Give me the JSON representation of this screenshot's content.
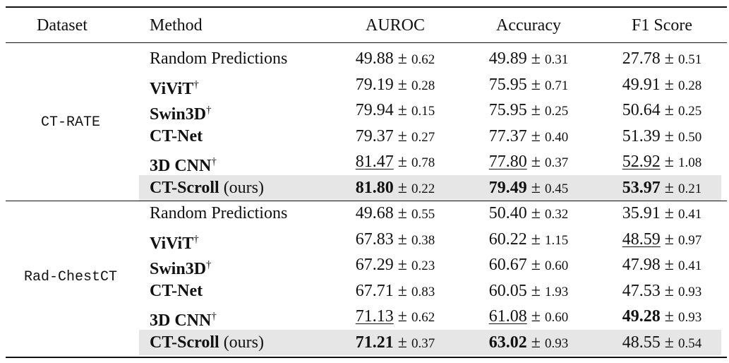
{
  "header": {
    "dataset": "Dataset",
    "method": "Method",
    "metrics": [
      "AUROC",
      "Accuracy",
      "F1 Score"
    ]
  },
  "groups": [
    {
      "dataset": "CT-RATE",
      "rows": [
        {
          "method": {
            "name": "Random Predictions"
          },
          "cells": [
            {
              "mean": "49.88",
              "sign": "±",
              "std": "0.62"
            },
            {
              "mean": "49.89",
              "sign": "±",
              "std": "0.31"
            },
            {
              "mean": "27.78",
              "sign": "±",
              "std": "0.51"
            }
          ]
        },
        {
          "method": {
            "name": "ViViT",
            "mark": "†",
            "bold": true
          },
          "cells": [
            {
              "mean": "79.19",
              "sign": "±",
              "std": "0.28"
            },
            {
              "mean": "75.95",
              "sign": "±",
              "std": "0.71"
            },
            {
              "mean": "49.91",
              "sign": "±",
              "std": "0.28"
            }
          ]
        },
        {
          "method": {
            "name": "Swin3D",
            "mark": "†",
            "bold": true
          },
          "cells": [
            {
              "mean": "79.94",
              "sign": "±",
              "std": "0.15"
            },
            {
              "mean": "75.95",
              "sign": "±",
              "std": "0.25"
            },
            {
              "mean": "50.64",
              "sign": "±",
              "std": "0.25"
            }
          ]
        },
        {
          "method": {
            "name": "CT-Net",
            "bold": true
          },
          "cells": [
            {
              "mean": "79.37",
              "sign": "±",
              "std": "0.27"
            },
            {
              "mean": "77.37",
              "sign": "±",
              "std": "0.40"
            },
            {
              "mean": "51.39",
              "sign": "±",
              "std": "0.50"
            }
          ]
        },
        {
          "method": {
            "name": "3D CNN",
            "mark": "†",
            "bold": true
          },
          "cells": [
            {
              "mean": "81.47",
              "sign": "±",
              "std": "0.78",
              "style": "underline"
            },
            {
              "mean": "77.80",
              "sign": "±",
              "std": "0.37",
              "style": "underline"
            },
            {
              "mean": "52.92",
              "sign": "±",
              "std": "1.08",
              "style": "underline"
            }
          ]
        },
        {
          "method": {
            "name": "CT-Scroll",
            "note": "(ours)",
            "bold": true
          },
          "highlight": true,
          "cells": [
            {
              "mean": "81.80",
              "sign": "±",
              "std": "0.22",
              "style": "bold"
            },
            {
              "mean": "79.49",
              "sign": "±",
              "std": "0.45",
              "style": "bold"
            },
            {
              "mean": "53.97",
              "sign": "±",
              "std": "0.21",
              "style": "bold"
            }
          ]
        }
      ]
    },
    {
      "dataset": "Rad-ChestCT",
      "rows": [
        {
          "method": {
            "name": "Random Predictions"
          },
          "cells": [
            {
              "mean": "49.68",
              "sign": "±",
              "std": "0.55"
            },
            {
              "mean": "50.40",
              "sign": "±",
              "std": "0.32"
            },
            {
              "mean": "35.91",
              "sign": "±",
              "std": "0.41"
            }
          ]
        },
        {
          "method": {
            "name": "ViViT",
            "mark": "†",
            "bold": true
          },
          "cells": [
            {
              "mean": "67.83",
              "sign": "±",
              "std": "0.38"
            },
            {
              "mean": "60.22",
              "sign": "±",
              "std": "1.15"
            },
            {
              "mean": "48.59",
              "sign": "±",
              "std": "0.97",
              "style": "underline"
            }
          ]
        },
        {
          "method": {
            "name": "Swin3D",
            "mark": "†",
            "bold": true
          },
          "cells": [
            {
              "mean": "67.29",
              "sign": "±",
              "std": "0.23"
            },
            {
              "mean": "60.67",
              "sign": "±",
              "std": "0.60"
            },
            {
              "mean": "47.98",
              "sign": "±",
              "std": "0.41"
            }
          ]
        },
        {
          "method": {
            "name": "CT-Net",
            "bold": true
          },
          "cells": [
            {
              "mean": "67.71",
              "sign": "±",
              "std": "0.83"
            },
            {
              "mean": "60.05",
              "sign": "±",
              "std": "1.93"
            },
            {
              "mean": "47.53",
              "sign": "±",
              "std": "0.93"
            }
          ]
        },
        {
          "method": {
            "name": "3D CNN",
            "mark": "†",
            "bold": true
          },
          "cells": [
            {
              "mean": "71.13",
              "sign": "±",
              "std": "0.62",
              "style": "underline"
            },
            {
              "mean": "61.08",
              "sign": "±",
              "std": "0.60",
              "style": "underline"
            },
            {
              "mean": "49.28",
              "sign": "±",
              "std": "0.93",
              "style": "bold"
            }
          ]
        },
        {
          "method": {
            "name": "CT-Scroll",
            "note": "(ours)",
            "bold": true
          },
          "highlight": true,
          "cells": [
            {
              "mean": "71.21",
              "sign": "±",
              "std": "0.37",
              "style": "bold"
            },
            {
              "mean": "63.02",
              "sign": "±",
              "std": "0.93",
              "style": "bold"
            },
            {
              "mean": "48.55",
              "sign": "±",
              "std": "0.54"
            }
          ]
        }
      ]
    }
  ]
}
